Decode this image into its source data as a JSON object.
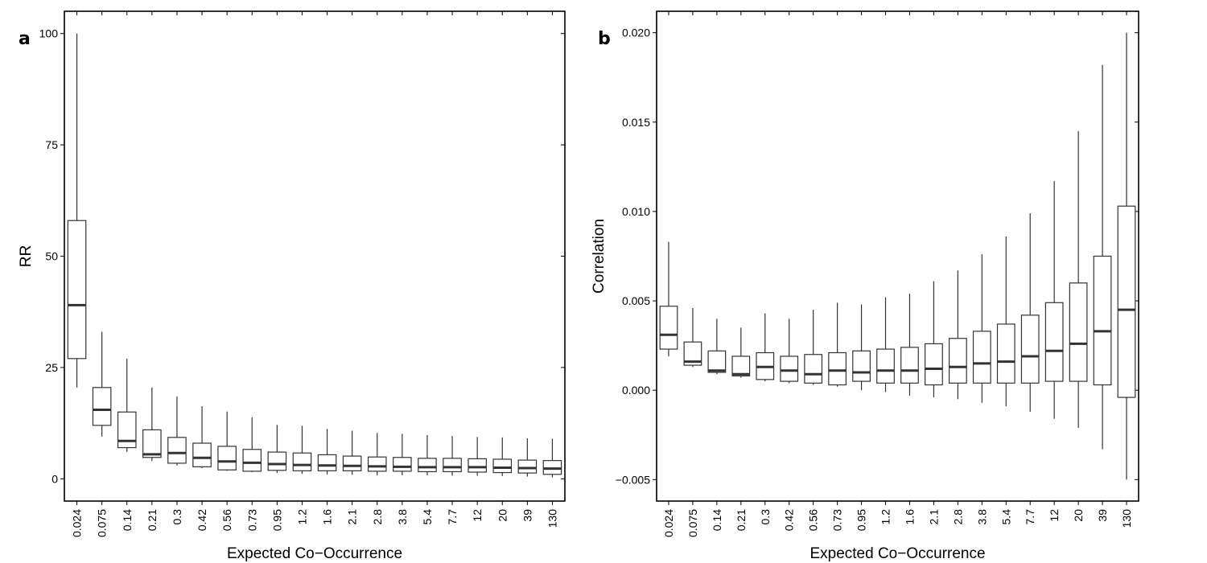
{
  "chart_data": [
    {
      "type": "boxplot",
      "panel_label": "a",
      "xlabel": "Expected Co−Occurrence",
      "ylabel": "RR",
      "categories": [
        "0.024",
        "0.075",
        "0.14",
        "0.21",
        "0.3",
        "0.42",
        "0.56",
        "0.73",
        "0.95",
        "1.2",
        "1.6",
        "2.1",
        "2.8",
        "3.8",
        "5.4",
        "7.7",
        "12",
        "20",
        "39",
        "130"
      ],
      "ylim": [
        -5,
        105
      ],
      "yticks": [
        0,
        25,
        50,
        75,
        100
      ],
      "ytick_labels": [
        "0",
        "25",
        "50",
        "75",
        "100"
      ],
      "boxes": [
        {
          "low": 20.5,
          "q1": 27,
          "median": 39,
          "q3": 58,
          "high": 100
        },
        {
          "low": 9.5,
          "q1": 12,
          "median": 15.5,
          "q3": 20.5,
          "high": 33
        },
        {
          "low": 6,
          "q1": 7,
          "median": 8.5,
          "q3": 15,
          "high": 27
        },
        {
          "low": 4,
          "q1": 4.8,
          "median": 5.5,
          "q3": 11,
          "high": 20.5
        },
        {
          "low": 3,
          "q1": 3.5,
          "median": 5.8,
          "q3": 9.3,
          "high": 18.5
        },
        {
          "low": 2.4,
          "q1": 2.7,
          "median": 4.7,
          "q3": 8,
          "high": 16.3
        },
        {
          "low": 1.8,
          "q1": 2,
          "median": 3.9,
          "q3": 7.3,
          "high": 15.1
        },
        {
          "low": 1.5,
          "q1": 1.7,
          "median": 3.6,
          "q3": 6.6,
          "high": 13.8
        },
        {
          "low": 1.3,
          "q1": 1.9,
          "median": 3.3,
          "q3": 6,
          "high": 12.1
        },
        {
          "low": 1.1,
          "q1": 1.8,
          "median": 3.1,
          "q3": 5.8,
          "high": 11.9
        },
        {
          "low": 1,
          "q1": 1.8,
          "median": 3,
          "q3": 5.4,
          "high": 11.2
        },
        {
          "low": 0.9,
          "q1": 1.8,
          "median": 2.9,
          "q3": 5.1,
          "high": 10.8
        },
        {
          "low": 0.8,
          "q1": 1.7,
          "median": 2.8,
          "q3": 4.9,
          "high": 10.3
        },
        {
          "low": 0.8,
          "q1": 1.7,
          "median": 2.7,
          "q3": 4.8,
          "high": 10.1
        },
        {
          "low": 0.8,
          "q1": 1.6,
          "median": 2.6,
          "q3": 4.6,
          "high": 9.8
        },
        {
          "low": 0.7,
          "q1": 1.6,
          "median": 2.6,
          "q3": 4.6,
          "high": 9.6
        },
        {
          "low": 0.7,
          "q1": 1.5,
          "median": 2.6,
          "q3": 4.5,
          "high": 9.4
        },
        {
          "low": 0.6,
          "q1": 1.4,
          "median": 2.5,
          "q3": 4.4,
          "high": 9.3
        },
        {
          "low": 0.5,
          "q1": 1.3,
          "median": 2.4,
          "q3": 4.2,
          "high": 9.1
        },
        {
          "low": 0.3,
          "q1": 1,
          "median": 2.3,
          "q3": 4.1,
          "high": 9
        }
      ],
      "grid": false
    },
    {
      "type": "boxplot",
      "panel_label": "b",
      "xlabel": "Expected Co−Occurrence",
      "ylabel": "Correlation",
      "categories": [
        "0.024",
        "0.075",
        "0.14",
        "0.21",
        "0.3",
        "0.42",
        "0.56",
        "0.73",
        "0.95",
        "1.2",
        "1.6",
        "2.1",
        "2.8",
        "3.8",
        "5.4",
        "7.7",
        "12",
        "20",
        "39",
        "130"
      ],
      "ylim": [
        -0.0062,
        0.0212
      ],
      "yticks": [
        -0.005,
        0,
        0.005,
        0.01,
        0.015,
        0.02
      ],
      "ytick_labels": [
        "−0.005",
        "0.000",
        "0.005",
        "0.010",
        "0.015",
        "0.020"
      ],
      "boxes": [
        {
          "low": 0.0019,
          "q1": 0.0023,
          "median": 0.0031,
          "q3": 0.0047,
          "high": 0.0083
        },
        {
          "low": 0.0013,
          "q1": 0.0014,
          "median": 0.0016,
          "q3": 0.0027,
          "high": 0.0046
        },
        {
          "low": 0.0009,
          "q1": 0.001,
          "median": 0.0011,
          "q3": 0.0022,
          "high": 0.004
        },
        {
          "low": 0.0007,
          "q1": 0.0008,
          "median": 0.0009,
          "q3": 0.0019,
          "high": 0.0035
        },
        {
          "low": 0.0005,
          "q1": 0.0006,
          "median": 0.0013,
          "q3": 0.0021,
          "high": 0.0043
        },
        {
          "low": 0.0004,
          "q1": 0.0005,
          "median": 0.0011,
          "q3": 0.0019,
          "high": 0.004
        },
        {
          "low": 0.0003,
          "q1": 0.0004,
          "median": 0.0009,
          "q3": 0.002,
          "high": 0.0045
        },
        {
          "low": 0.0002,
          "q1": 0.0003,
          "median": 0.0011,
          "q3": 0.0021,
          "high": 0.0049
        },
        {
          "low": 0,
          "q1": 0.0005,
          "median": 0.001,
          "q3": 0.0022,
          "high": 0.0048
        },
        {
          "low": -0.0001,
          "q1": 0.0004,
          "median": 0.0011,
          "q3": 0.0023,
          "high": 0.0052
        },
        {
          "low": -0.0003,
          "q1": 0.0004,
          "median": 0.0011,
          "q3": 0.0024,
          "high": 0.0054
        },
        {
          "low": -0.0004,
          "q1": 0.0003,
          "median": 0.0012,
          "q3": 0.0026,
          "high": 0.0061
        },
        {
          "low": -0.0005,
          "q1": 0.0004,
          "median": 0.0013,
          "q3": 0.0029,
          "high": 0.0067
        },
        {
          "low": -0.0007,
          "q1": 0.0004,
          "median": 0.0015,
          "q3": 0.0033,
          "high": 0.0076
        },
        {
          "low": -0.0009,
          "q1": 0.0004,
          "median": 0.0016,
          "q3": 0.0037,
          "high": 0.0086
        },
        {
          "low": -0.0012,
          "q1": 0.0004,
          "median": 0.0019,
          "q3": 0.0042,
          "high": 0.0099
        },
        {
          "low": -0.0016,
          "q1": 0.0005,
          "median": 0.0022,
          "q3": 0.0049,
          "high": 0.0117
        },
        {
          "low": -0.0021,
          "q1": 0.0005,
          "median": 0.0026,
          "q3": 0.006,
          "high": 0.0145
        },
        {
          "low": -0.0033,
          "q1": 0.0003,
          "median": 0.0033,
          "q3": 0.0075,
          "high": 0.0182
        },
        {
          "low": -0.005,
          "q1": -0.0004,
          "median": 0.0045,
          "q3": 0.0103,
          "high": 0.02
        }
      ],
      "grid": false
    }
  ]
}
